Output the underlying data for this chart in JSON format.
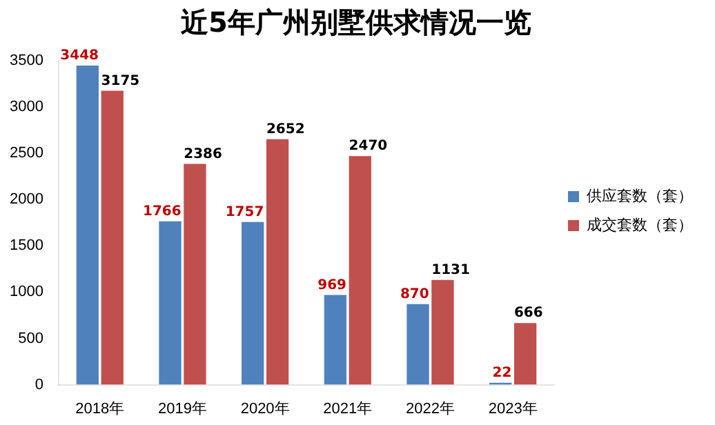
{
  "chart_data": {
    "type": "bar",
    "title": "近5年广州别墅供求情况一览",
    "categories": [
      "2018年",
      "2019年",
      "2020年",
      "2021年",
      "2022年",
      "2023年"
    ],
    "series": [
      {
        "name": "供应套数（套）",
        "color": "#4f81bd",
        "values": [
          3448,
          1766,
          1757,
          969,
          870,
          22
        ]
      },
      {
        "name": "成交套数（套）",
        "color": "#c0504d",
        "values": [
          3175,
          2386,
          2652,
          2470,
          1131,
          666
        ]
      }
    ],
    "ylim": [
      0,
      3500
    ],
    "yticks": [
      0,
      500,
      1000,
      1500,
      2000,
      2500,
      3000,
      3500
    ],
    "grid": false,
    "legend": "right",
    "data_labels": true
  }
}
